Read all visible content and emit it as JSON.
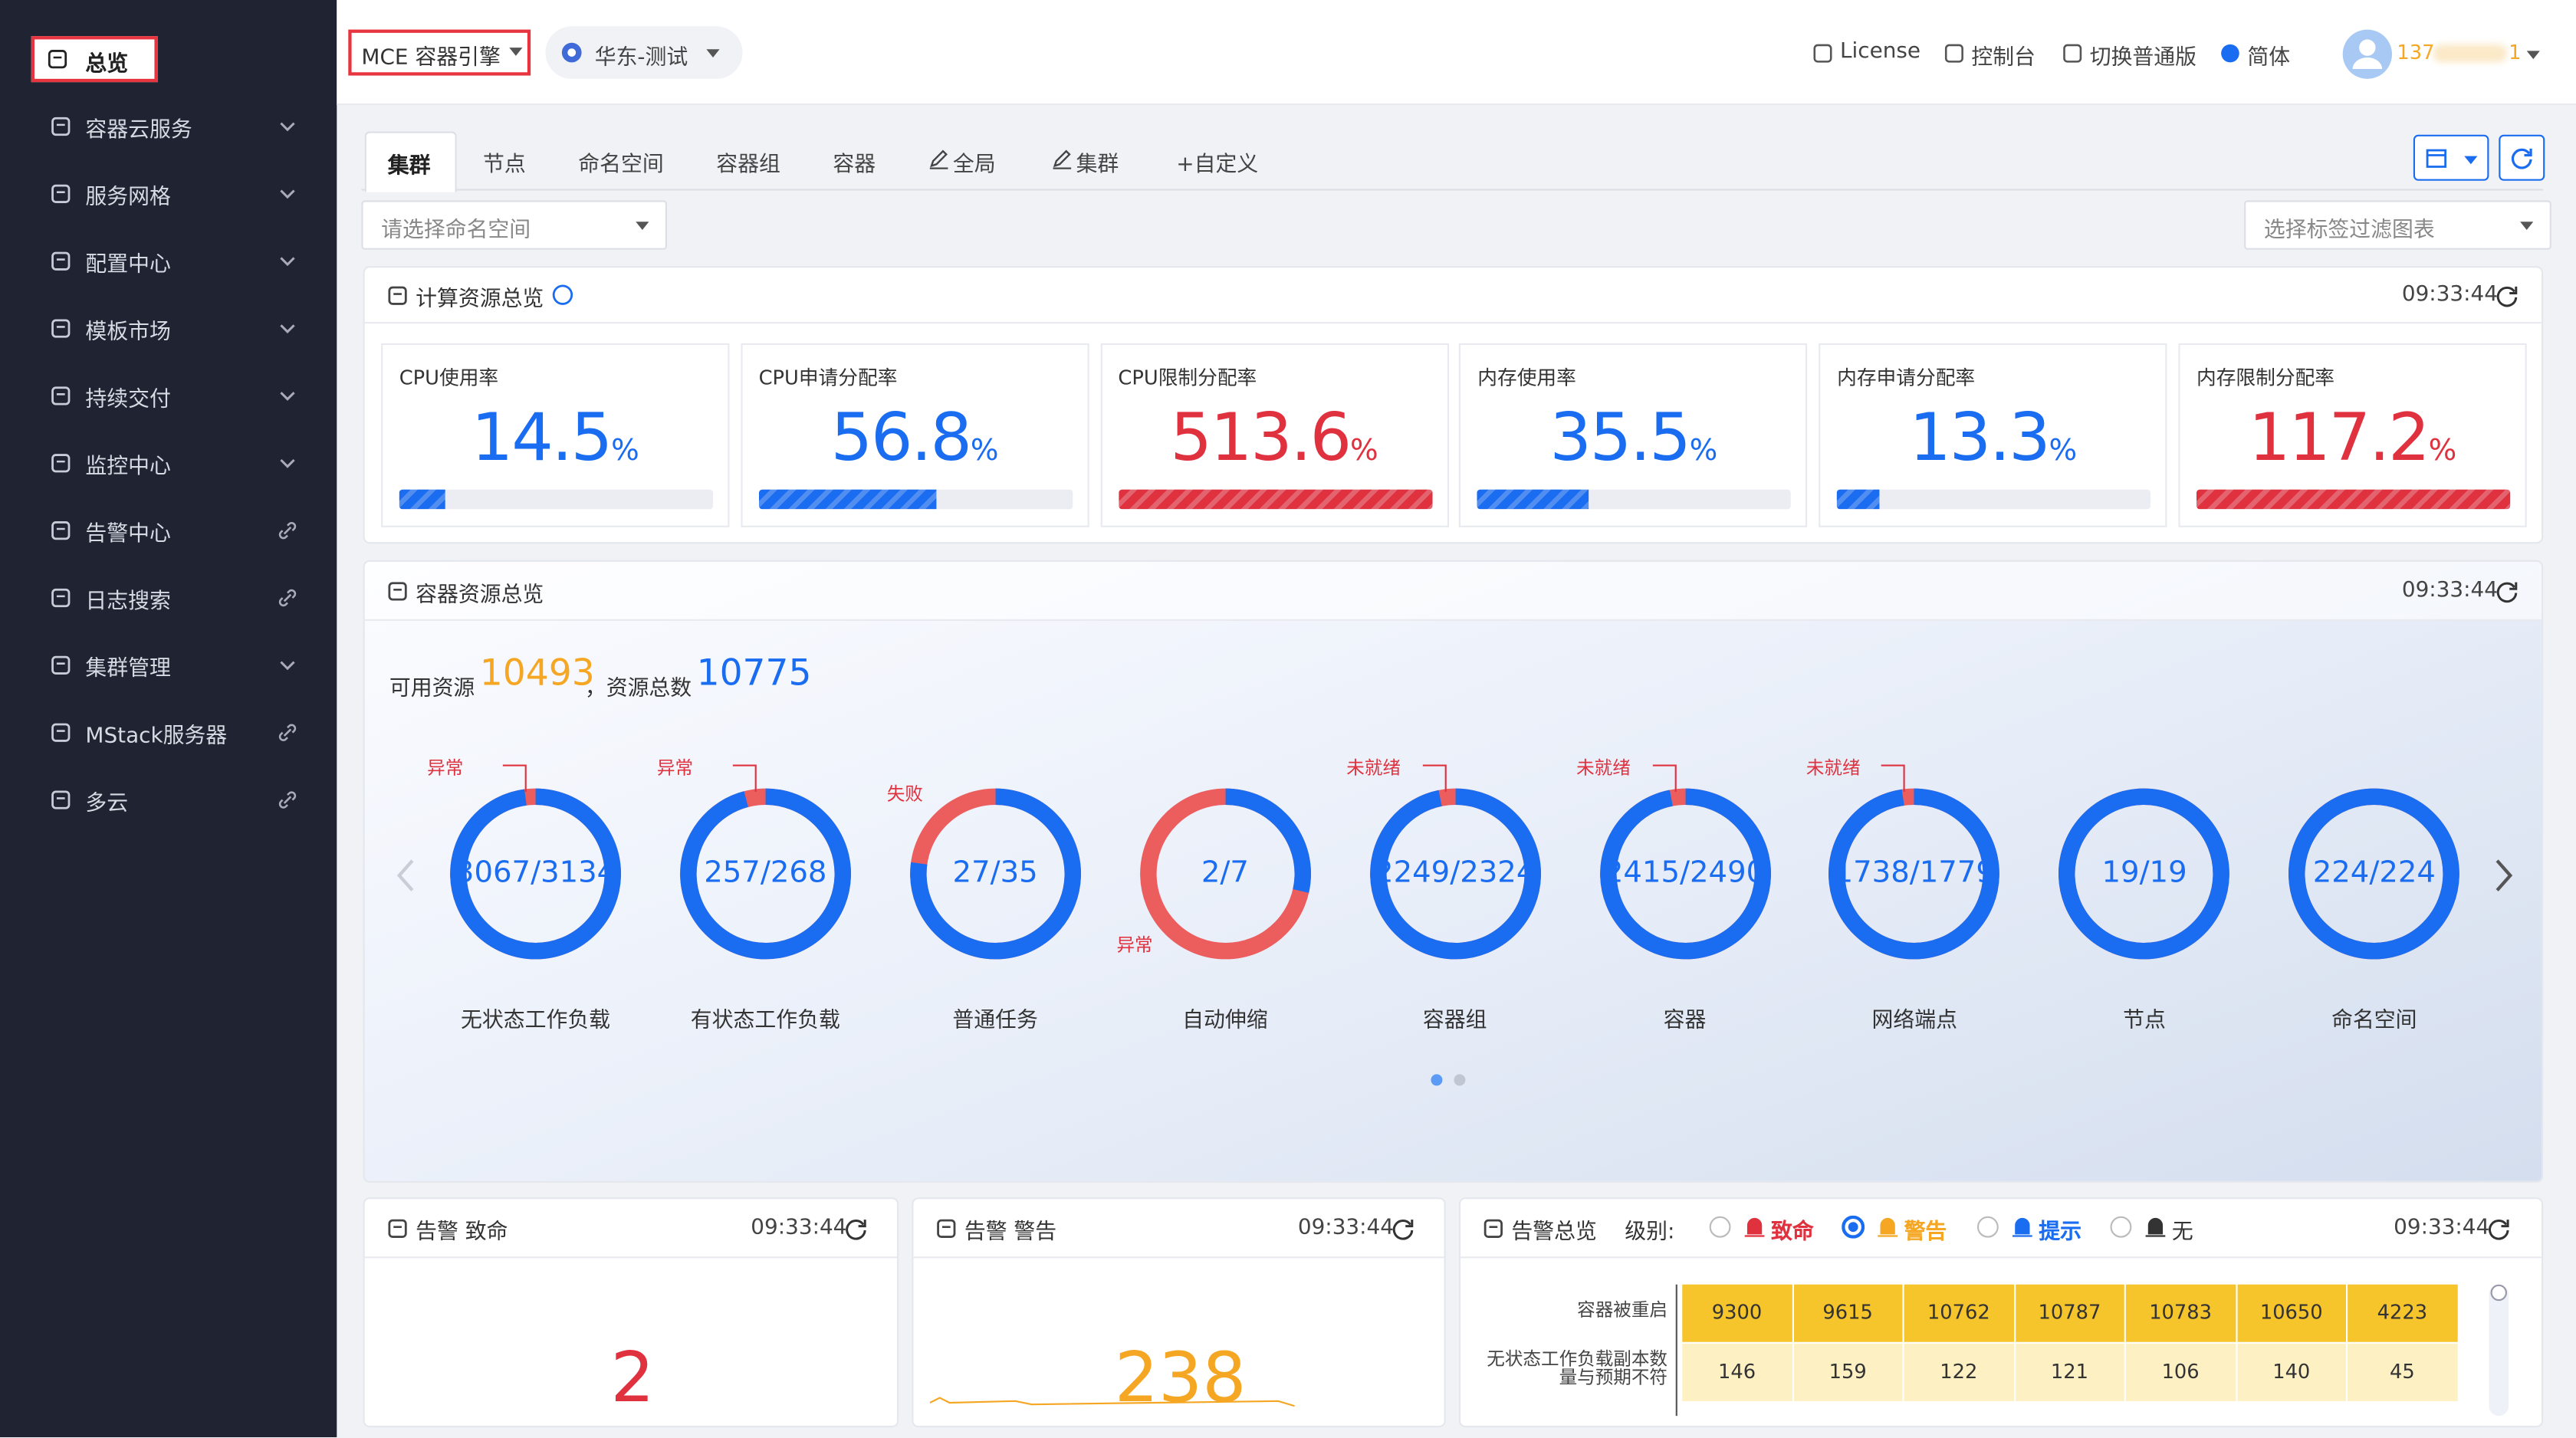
{
  "sidebar": {
    "items": [
      {
        "label": "总览",
        "kind": "active"
      },
      {
        "label": "容器云服务",
        "kind": "expand"
      },
      {
        "label": "服务网格",
        "kind": "expand"
      },
      {
        "label": "配置中心",
        "kind": "expand"
      },
      {
        "label": "模板市场",
        "kind": "expand"
      },
      {
        "label": "持续交付",
        "kind": "expand"
      },
      {
        "label": "监控中心",
        "kind": "expand"
      },
      {
        "label": "告警中心",
        "kind": "link"
      },
      {
        "label": "日志搜索",
        "kind": "link"
      },
      {
        "label": "集群管理",
        "kind": "expand"
      },
      {
        "label": "MStack服务器",
        "kind": "link"
      },
      {
        "label": "多云",
        "kind": "link"
      }
    ]
  },
  "header": {
    "product": "MCE 容器引擎",
    "region": "华东-测试",
    "links": [
      "License",
      "控制台",
      "切换普通版",
      "简体"
    ],
    "user_head": "137",
    "user_tail": "1"
  },
  "tabs": {
    "items": [
      "集群",
      "节点",
      "命名空间",
      "容器组",
      "容器",
      "全局",
      "集群",
      "+自定义"
    ],
    "active": 0
  },
  "filters": {
    "namespace": "请选择命名空间",
    "labels": "选择标签过滤图表"
  },
  "compute": {
    "title": "计算资源总览",
    "time": "09:33:44",
    "cards": [
      {
        "label": "CPU使用率",
        "value": "14.5",
        "unit": "%",
        "color": "#1a6cf0"
      },
      {
        "label": "CPU申请分配率",
        "value": "56.8",
        "unit": "%",
        "color": "#1a6cf0"
      },
      {
        "label": "CPU限制分配率",
        "value": "513.6",
        "unit": "%",
        "color": "#e0313f"
      },
      {
        "label": "内存使用率",
        "value": "35.5",
        "unit": "%",
        "color": "#1a6cf0"
      },
      {
        "label": "内存申请分配率",
        "value": "13.3",
        "unit": "%",
        "color": "#1a6cf0"
      },
      {
        "label": "内存限制分配率",
        "value": "117.2",
        "unit": "%",
        "color": "#e0313f"
      }
    ]
  },
  "container": {
    "title": "容器资源总览",
    "time": "09:33:44",
    "available_label": "可用资源",
    "available": "10493",
    "total_label": "，资源总数",
    "total": "10775",
    "rings": [
      {
        "value": "3067/3134",
        "label": "无状态工作负载",
        "status": "异常"
      },
      {
        "value": "257/268",
        "label": "有状态工作负载",
        "status": "异常"
      },
      {
        "value": "27/35",
        "label": "普通任务",
        "status": "失败"
      },
      {
        "value": "2/7",
        "label": "自动伸缩",
        "status": "异常"
      },
      {
        "value": "2249/2324",
        "label": "容器组",
        "status": "未就绪"
      },
      {
        "value": "2415/2490",
        "label": "容器",
        "status": "未就绪"
      },
      {
        "value": "1738/1779",
        "label": "网络端点",
        "status": "未就绪"
      },
      {
        "value": "19/19",
        "label": "节点"
      },
      {
        "value": "224/224",
        "label": "命名空间"
      }
    ]
  },
  "alerts": {
    "fatal": {
      "title": "告警 致命",
      "time": "09:33:44",
      "value": "2"
    },
    "warning": {
      "title": "告警 警告",
      "time": "09:33:44",
      "value": "238"
    },
    "overview": {
      "title": "告警总览",
      "level_label": "级别:",
      "levels": [
        "致命",
        "警告",
        "提示",
        "无"
      ],
      "selected": 1,
      "time": "09:33:44",
      "rows": [
        {
          "label": "容器被重启",
          "values": [
            9300,
            9615,
            10762,
            10787,
            10783,
            10650,
            4223
          ]
        },
        {
          "label": "无状态工作负载副本数量与预期不符",
          "values": [
            146,
            159,
            122,
            121,
            106,
            140,
            45
          ]
        }
      ]
    }
  }
}
